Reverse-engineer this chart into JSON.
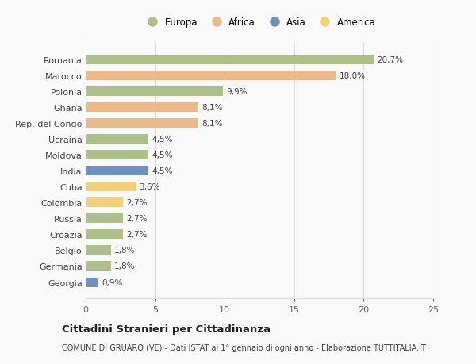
{
  "countries": [
    "Romania",
    "Marocco",
    "Polonia",
    "Ghana",
    "Rep. del Congo",
    "Ucraina",
    "Moldova",
    "India",
    "Cuba",
    "Colombia",
    "Russia",
    "Croazia",
    "Belgio",
    "Germania",
    "Georgia"
  ],
  "values": [
    20.7,
    18.0,
    9.9,
    8.1,
    8.1,
    4.5,
    4.5,
    4.5,
    3.6,
    2.7,
    2.7,
    2.7,
    1.8,
    1.8,
    0.9
  ],
  "labels": [
    "20,7%",
    "18,0%",
    "9,9%",
    "8,1%",
    "8,1%",
    "4,5%",
    "4,5%",
    "4,5%",
    "3,6%",
    "2,7%",
    "2,7%",
    "2,7%",
    "1,8%",
    "1,8%",
    "0,9%"
  ],
  "continents": [
    "Europa",
    "Africa",
    "Europa",
    "Africa",
    "Africa",
    "Europa",
    "Europa",
    "Asia",
    "America",
    "America",
    "Europa",
    "Europa",
    "Europa",
    "Europa",
    "Asia"
  ],
  "colors": {
    "Europa": "#adc08a",
    "Africa": "#e8b98a",
    "Asia": "#7090bf",
    "America": "#f0d07a"
  },
  "xlim": [
    0,
    25
  ],
  "xticks": [
    0,
    5,
    10,
    15,
    20,
    25
  ],
  "title": "Cittadini Stranieri per Cittadinanza",
  "subtitle": "COMUNE DI GRUARO (VE) - Dati ISTAT al 1° gennaio di ogni anno - Elaborazione TUTTITALIA.IT",
  "background_color": "#f9f9f9",
  "bar_height": 0.6,
  "grid_color": "#dddddd",
  "legend_order": [
    "Europa",
    "Africa",
    "Asia",
    "America"
  ]
}
